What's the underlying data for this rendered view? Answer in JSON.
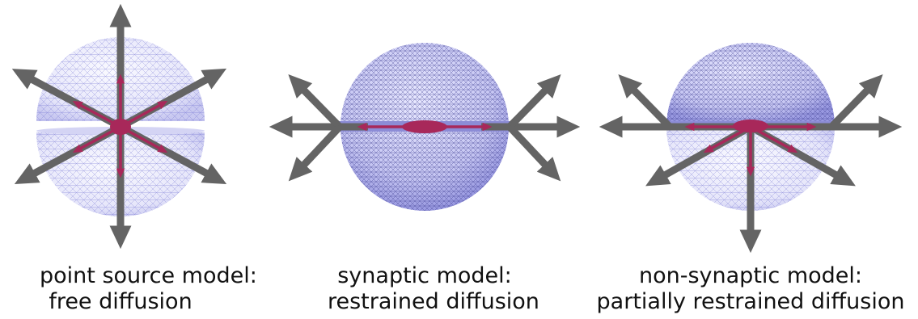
{
  "panels": [
    {
      "id": "point-source",
      "caption_line1": "point source model:",
      "caption_line2": "free diffusion"
    },
    {
      "id": "synaptic",
      "caption_line1": "synaptic model:",
      "caption_line2": "restrained diffusion"
    },
    {
      "id": "non-synaptic",
      "caption_line1": "non-synaptic model:",
      "caption_line2": "partially restrained diffusion"
    }
  ],
  "colors": {
    "arrow": "#646464",
    "source": "#a8285a",
    "mesh": "#7878d8",
    "sphere_light": "#eeeeff",
    "sphere_dark": "#b4b4e8"
  }
}
